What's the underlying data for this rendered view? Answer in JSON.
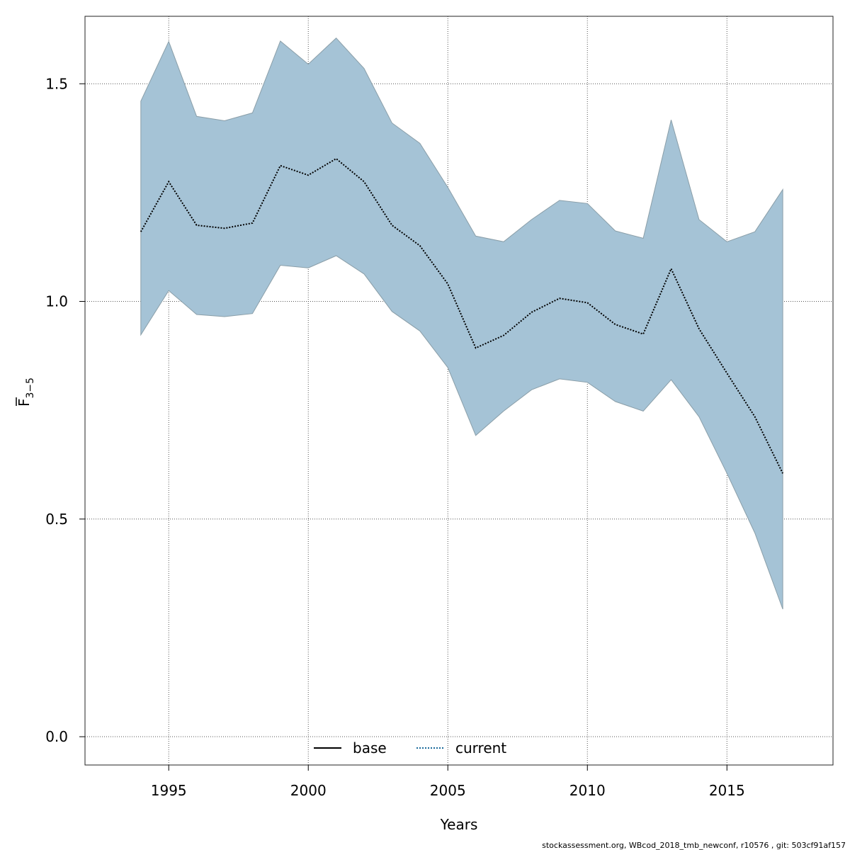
{
  "chart_data": {
    "type": "line",
    "xlabel": "Years",
    "ylabel_main": "F",
    "ylabel_sub": "3−5",
    "xlim": [
      1992.0,
      2018.8
    ],
    "ylim": [
      -0.065,
      1.655
    ],
    "xticks": [
      1995,
      2000,
      2005,
      2010,
      2015
    ],
    "yticks": [
      0.0,
      0.5,
      1.0,
      1.5
    ],
    "ytick_labels": [
      "0.0",
      "0.5",
      "1.0",
      "1.5"
    ],
    "grid": true,
    "legend_position": "bottom",
    "x": [
      1994,
      1995,
      1996,
      1997,
      1998,
      1999,
      2000,
      2001,
      2002,
      2003,
      2004,
      2005,
      2006,
      2007,
      2008,
      2009,
      2010,
      2011,
      2012,
      2013,
      2014,
      2015,
      2016,
      2017
    ],
    "series": [
      {
        "name": "current",
        "style": "dotted",
        "values": [
          1.16,
          1.275,
          1.175,
          1.168,
          1.18,
          1.312,
          1.29,
          1.328,
          1.275,
          1.175,
          1.128,
          1.04,
          0.893,
          0.922,
          0.975,
          1.007,
          0.997,
          0.947,
          0.925,
          1.075,
          0.937,
          0.835,
          0.735,
          0.605
        ],
        "lower": [
          0.923,
          1.025,
          0.97,
          0.965,
          0.972,
          1.083,
          1.077,
          1.105,
          1.063,
          0.977,
          0.932,
          0.848,
          0.692,
          0.748,
          0.797,
          0.822,
          0.814,
          0.77,
          0.748,
          0.82,
          0.735,
          0.605,
          0.468,
          0.293
        ],
        "upper": [
          1.46,
          1.597,
          1.425,
          1.415,
          1.433,
          1.598,
          1.545,
          1.605,
          1.535,
          1.41,
          1.363,
          1.262,
          1.15,
          1.137,
          1.188,
          1.232,
          1.225,
          1.162,
          1.145,
          1.417,
          1.188,
          1.137,
          1.16,
          1.257
        ]
      }
    ],
    "legend": [
      {
        "label": "base",
        "style": "solid"
      },
      {
        "label": "current",
        "style": "dotted"
      }
    ],
    "colors": {
      "band_fill": "#a5c3d6",
      "band_stroke": "#8a9ea8",
      "line": "#000000",
      "line_current_legend": "#1b6a9b",
      "grid": "#555555"
    }
  },
  "footer": "stockassessment.org, WBcod_2018_tmb_newconf, r10576 , git: 503cf91af157"
}
